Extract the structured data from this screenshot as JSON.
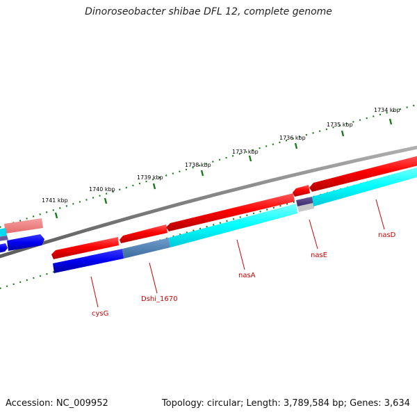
{
  "title": "Dinoroseobacter shibae DFL 12, complete genome",
  "accession_label": "Accession: NC_009952",
  "summary_label": "Topology: circular; Length: 3,789,584 bp; Genes: 3,634",
  "ticks": [
    "1734 kbp",
    "1735 kbp",
    "1736 kbp",
    "1737 kbp",
    "1738 kbp",
    "1739 kbp",
    "1740 kbp",
    "1741 kbp"
  ],
  "genes": [
    "nasD",
    "nasE",
    "nasA",
    "Dshi_1670",
    "cysG"
  ],
  "colors": {
    "backbone": "#808080",
    "cds_feature": "#ff0000",
    "cds_light": "#f08080",
    "gc_skew_cyan": "#00ffff",
    "gc_skew_blue": "#0000ff",
    "steelblue": "#4682b4",
    "tick_green": "#006400",
    "label_red": "#cc0000"
  }
}
